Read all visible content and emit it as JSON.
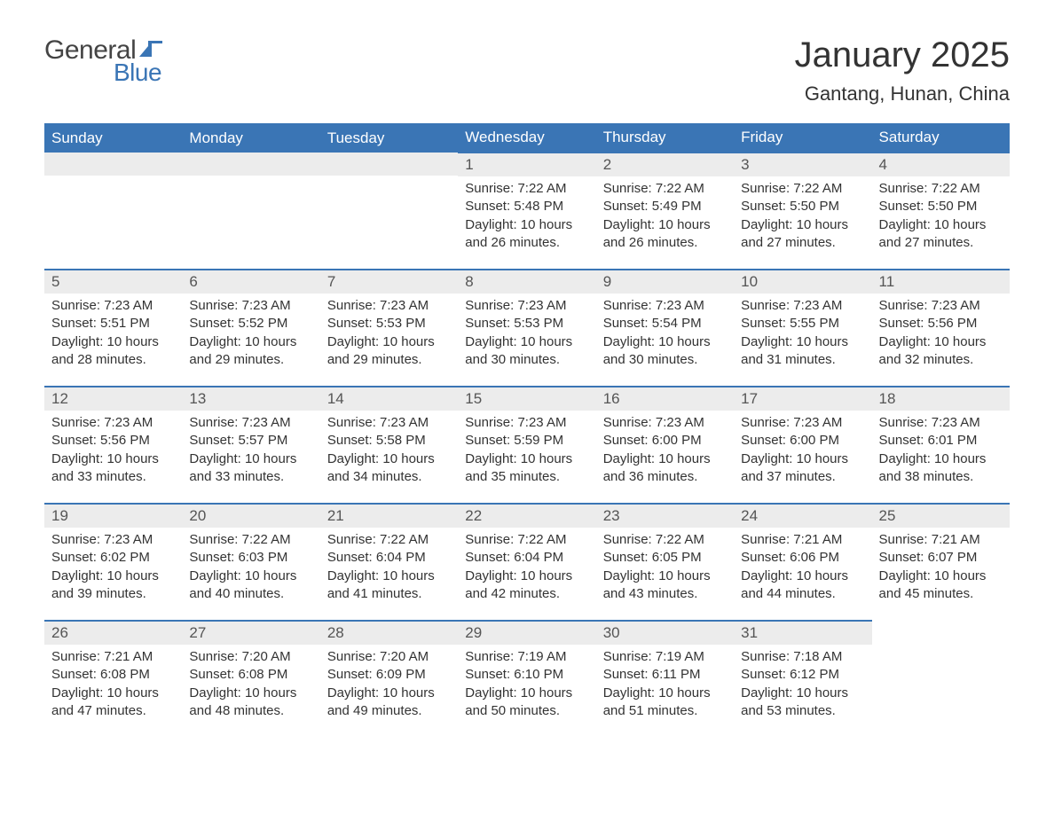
{
  "logo": {
    "general": "General",
    "blue": "Blue",
    "flag_color": "#3a75b5"
  },
  "title": "January 2025",
  "location": "Gantang, Hunan, China",
  "colors": {
    "header_bg": "#3a75b5",
    "header_text": "#ffffff",
    "daynum_bg": "#ececec",
    "daynum_text": "#555555",
    "body_text": "#333333",
    "cell_border": "#3a75b5",
    "page_bg": "#ffffff"
  },
  "fonts": {
    "title_pt": 40,
    "location_pt": 22,
    "header_pt": 17,
    "daynum_pt": 17,
    "body_pt": 15
  },
  "weekdays": [
    "Sunday",
    "Monday",
    "Tuesday",
    "Wednesday",
    "Thursday",
    "Friday",
    "Saturday"
  ],
  "weeks": [
    [
      null,
      null,
      null,
      {
        "day": "1",
        "sunrise": "Sunrise: 7:22 AM",
        "sunset": "Sunset: 5:48 PM",
        "dl1": "Daylight: 10 hours",
        "dl2": "and 26 minutes."
      },
      {
        "day": "2",
        "sunrise": "Sunrise: 7:22 AM",
        "sunset": "Sunset: 5:49 PM",
        "dl1": "Daylight: 10 hours",
        "dl2": "and 26 minutes."
      },
      {
        "day": "3",
        "sunrise": "Sunrise: 7:22 AM",
        "sunset": "Sunset: 5:50 PM",
        "dl1": "Daylight: 10 hours",
        "dl2": "and 27 minutes."
      },
      {
        "day": "4",
        "sunrise": "Sunrise: 7:22 AM",
        "sunset": "Sunset: 5:50 PM",
        "dl1": "Daylight: 10 hours",
        "dl2": "and 27 minutes."
      }
    ],
    [
      {
        "day": "5",
        "sunrise": "Sunrise: 7:23 AM",
        "sunset": "Sunset: 5:51 PM",
        "dl1": "Daylight: 10 hours",
        "dl2": "and 28 minutes."
      },
      {
        "day": "6",
        "sunrise": "Sunrise: 7:23 AM",
        "sunset": "Sunset: 5:52 PM",
        "dl1": "Daylight: 10 hours",
        "dl2": "and 29 minutes."
      },
      {
        "day": "7",
        "sunrise": "Sunrise: 7:23 AM",
        "sunset": "Sunset: 5:53 PM",
        "dl1": "Daylight: 10 hours",
        "dl2": "and 29 minutes."
      },
      {
        "day": "8",
        "sunrise": "Sunrise: 7:23 AM",
        "sunset": "Sunset: 5:53 PM",
        "dl1": "Daylight: 10 hours",
        "dl2": "and 30 minutes."
      },
      {
        "day": "9",
        "sunrise": "Sunrise: 7:23 AM",
        "sunset": "Sunset: 5:54 PM",
        "dl1": "Daylight: 10 hours",
        "dl2": "and 30 minutes."
      },
      {
        "day": "10",
        "sunrise": "Sunrise: 7:23 AM",
        "sunset": "Sunset: 5:55 PM",
        "dl1": "Daylight: 10 hours",
        "dl2": "and 31 minutes."
      },
      {
        "day": "11",
        "sunrise": "Sunrise: 7:23 AM",
        "sunset": "Sunset: 5:56 PM",
        "dl1": "Daylight: 10 hours",
        "dl2": "and 32 minutes."
      }
    ],
    [
      {
        "day": "12",
        "sunrise": "Sunrise: 7:23 AM",
        "sunset": "Sunset: 5:56 PM",
        "dl1": "Daylight: 10 hours",
        "dl2": "and 33 minutes."
      },
      {
        "day": "13",
        "sunrise": "Sunrise: 7:23 AM",
        "sunset": "Sunset: 5:57 PM",
        "dl1": "Daylight: 10 hours",
        "dl2": "and 33 minutes."
      },
      {
        "day": "14",
        "sunrise": "Sunrise: 7:23 AM",
        "sunset": "Sunset: 5:58 PM",
        "dl1": "Daylight: 10 hours",
        "dl2": "and 34 minutes."
      },
      {
        "day": "15",
        "sunrise": "Sunrise: 7:23 AM",
        "sunset": "Sunset: 5:59 PM",
        "dl1": "Daylight: 10 hours",
        "dl2": "and 35 minutes."
      },
      {
        "day": "16",
        "sunrise": "Sunrise: 7:23 AM",
        "sunset": "Sunset: 6:00 PM",
        "dl1": "Daylight: 10 hours",
        "dl2": "and 36 minutes."
      },
      {
        "day": "17",
        "sunrise": "Sunrise: 7:23 AM",
        "sunset": "Sunset: 6:00 PM",
        "dl1": "Daylight: 10 hours",
        "dl2": "and 37 minutes."
      },
      {
        "day": "18",
        "sunrise": "Sunrise: 7:23 AM",
        "sunset": "Sunset: 6:01 PM",
        "dl1": "Daylight: 10 hours",
        "dl2": "and 38 minutes."
      }
    ],
    [
      {
        "day": "19",
        "sunrise": "Sunrise: 7:23 AM",
        "sunset": "Sunset: 6:02 PM",
        "dl1": "Daylight: 10 hours",
        "dl2": "and 39 minutes."
      },
      {
        "day": "20",
        "sunrise": "Sunrise: 7:22 AM",
        "sunset": "Sunset: 6:03 PM",
        "dl1": "Daylight: 10 hours",
        "dl2": "and 40 minutes."
      },
      {
        "day": "21",
        "sunrise": "Sunrise: 7:22 AM",
        "sunset": "Sunset: 6:04 PM",
        "dl1": "Daylight: 10 hours",
        "dl2": "and 41 minutes."
      },
      {
        "day": "22",
        "sunrise": "Sunrise: 7:22 AM",
        "sunset": "Sunset: 6:04 PM",
        "dl1": "Daylight: 10 hours",
        "dl2": "and 42 minutes."
      },
      {
        "day": "23",
        "sunrise": "Sunrise: 7:22 AM",
        "sunset": "Sunset: 6:05 PM",
        "dl1": "Daylight: 10 hours",
        "dl2": "and 43 minutes."
      },
      {
        "day": "24",
        "sunrise": "Sunrise: 7:21 AM",
        "sunset": "Sunset: 6:06 PM",
        "dl1": "Daylight: 10 hours",
        "dl2": "and 44 minutes."
      },
      {
        "day": "25",
        "sunrise": "Sunrise: 7:21 AM",
        "sunset": "Sunset: 6:07 PM",
        "dl1": "Daylight: 10 hours",
        "dl2": "and 45 minutes."
      }
    ],
    [
      {
        "day": "26",
        "sunrise": "Sunrise: 7:21 AM",
        "sunset": "Sunset: 6:08 PM",
        "dl1": "Daylight: 10 hours",
        "dl2": "and 47 minutes."
      },
      {
        "day": "27",
        "sunrise": "Sunrise: 7:20 AM",
        "sunset": "Sunset: 6:08 PM",
        "dl1": "Daylight: 10 hours",
        "dl2": "and 48 minutes."
      },
      {
        "day": "28",
        "sunrise": "Sunrise: 7:20 AM",
        "sunset": "Sunset: 6:09 PM",
        "dl1": "Daylight: 10 hours",
        "dl2": "and 49 minutes."
      },
      {
        "day": "29",
        "sunrise": "Sunrise: 7:19 AM",
        "sunset": "Sunset: 6:10 PM",
        "dl1": "Daylight: 10 hours",
        "dl2": "and 50 minutes."
      },
      {
        "day": "30",
        "sunrise": "Sunrise: 7:19 AM",
        "sunset": "Sunset: 6:11 PM",
        "dl1": "Daylight: 10 hours",
        "dl2": "and 51 minutes."
      },
      {
        "day": "31",
        "sunrise": "Sunrise: 7:18 AM",
        "sunset": "Sunset: 6:12 PM",
        "dl1": "Daylight: 10 hours",
        "dl2": "and 53 minutes."
      },
      null
    ]
  ]
}
